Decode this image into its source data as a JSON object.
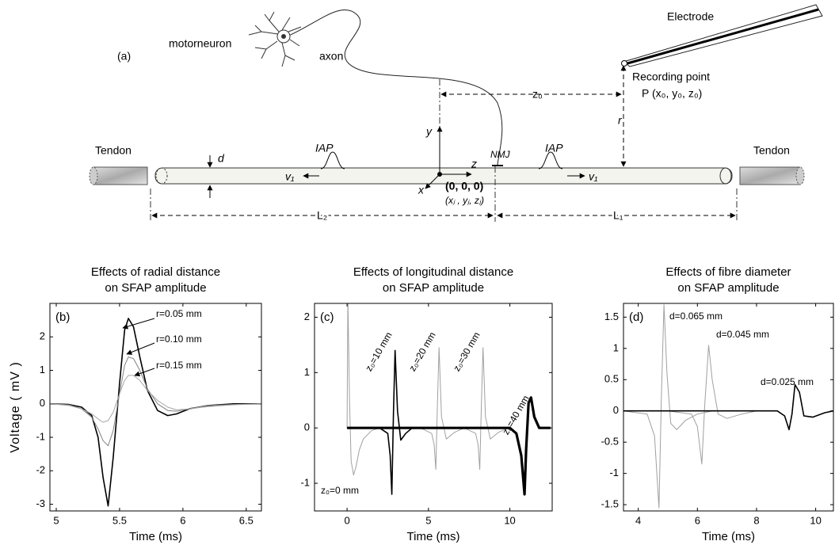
{
  "diagram": {
    "panel_label": "(a)",
    "motorneuron": "motorneuron",
    "axon": "axon",
    "electrode": "Electrode",
    "recording_point": "Recording point",
    "point_coords": "P (x₀, y₀, z₀)",
    "z0": "z₀",
    "r": "r",
    "tendon_left": "Tendon",
    "tendon_right": "Tendon",
    "d": "d",
    "iap_left": "IAP",
    "iap_right": "IAP",
    "v1_left": "v₁",
    "v1_right": "v₁",
    "axis_y": "y",
    "axis_z": "z",
    "axis_x": "x",
    "nmj": "NMJ",
    "origin": "(0, 0, 0)",
    "fibre_coords": "(xⱼ , yⱼ, zⱼ)",
    "l2": "L₂",
    "l1": "L₁"
  },
  "chart_data": [
    {
      "type": "line",
      "panel_label": "(b)",
      "title": [
        "Effects of radial distance",
        "on SFAP amplitude"
      ],
      "xlabel": "Time (ms)",
      "ylabel": "Voltage ( mV )",
      "xlim": [
        4.95,
        6.62
      ],
      "ylim": [
        -3.2,
        3.0
      ],
      "xticks": [
        5,
        5.5,
        6,
        6.5
      ],
      "yticks": [
        -3,
        -2,
        -1,
        0,
        1,
        2
      ],
      "series": [
        {
          "name": "r=0.05 mm",
          "color": "#000000",
          "x": [
            4.95,
            5.1,
            5.2,
            5.28,
            5.33,
            5.37,
            5.41,
            5.45,
            5.5,
            5.54,
            5.57,
            5.61,
            5.66,
            5.72,
            5.8,
            5.88,
            5.95,
            6.05,
            6.2,
            6.4,
            6.62
          ],
          "values": [
            0,
            -0.02,
            -0.1,
            -0.35,
            -1.0,
            -2.2,
            -3.05,
            -1.6,
            0.6,
            2.2,
            2.55,
            2.3,
            1.4,
            0.4,
            -0.2,
            -0.35,
            -0.3,
            -0.15,
            -0.05,
            0,
            0
          ]
        },
        {
          "name": "r=0.10 mm",
          "color": "#808080",
          "x": [
            4.95,
            5.1,
            5.2,
            5.28,
            5.33,
            5.37,
            5.41,
            5.45,
            5.5,
            5.54,
            5.57,
            5.61,
            5.66,
            5.72,
            5.8,
            5.88,
            5.95,
            6.05,
            6.2,
            6.4,
            6.62
          ],
          "values": [
            0,
            -0.03,
            -0.15,
            -0.4,
            -0.75,
            -1.1,
            -1.25,
            -0.8,
            0.3,
            1.15,
            1.4,
            1.35,
            1.0,
            0.45,
            0,
            -0.2,
            -0.22,
            -0.15,
            -0.05,
            -0.02,
            0
          ]
        },
        {
          "name": "r=0.15 mm",
          "color": "#a8a8a8",
          "x": [
            4.95,
            5.1,
            5.2,
            5.28,
            5.33,
            5.37,
            5.41,
            5.45,
            5.5,
            5.54,
            5.57,
            5.61,
            5.66,
            5.72,
            5.8,
            5.88,
            5.95,
            6.05,
            6.2,
            6.4,
            6.62
          ],
          "values": [
            0,
            -0.05,
            -0.15,
            -0.3,
            -0.45,
            -0.55,
            -0.5,
            -0.25,
            0.3,
            0.7,
            0.85,
            0.85,
            0.7,
            0.4,
            0.1,
            -0.1,
            -0.18,
            -0.15,
            -0.08,
            -0.03,
            0
          ]
        }
      ]
    },
    {
      "type": "line",
      "panel_label": "(c)",
      "title": [
        "Effects of longitudinal distance",
        "on SFAP amplitude"
      ],
      "xlabel": "Time (ms)",
      "xlim": [
        -2,
        12.6
      ],
      "ylim": [
        -1.5,
        2.25
      ],
      "xticks": [
        0,
        5,
        10
      ],
      "yticks": [
        -1,
        0,
        1,
        2
      ],
      "series": [
        {
          "name": "z₀=0 mm",
          "color": "#a0a0a0",
          "x": [
            0,
            0.05,
            0.15,
            0.25,
            0.4,
            0.55,
            0.75,
            1.0,
            1.5,
            2.0
          ],
          "values": [
            0,
            2.35,
            0.5,
            -0.6,
            -0.85,
            -0.7,
            -0.4,
            -0.2,
            -0.05,
            0
          ]
        },
        {
          "name": "z₀=10 mm",
          "color": "#000000",
          "x": [
            2.0,
            2.5,
            2.65,
            2.75,
            2.85,
            2.95,
            3.1,
            3.3,
            3.6,
            4.0
          ],
          "values": [
            0,
            -0.1,
            -0.5,
            -1.2,
            0.3,
            1.4,
            0.3,
            -0.22,
            -0.1,
            0
          ]
        },
        {
          "name": "z₀=20 mm",
          "color": "#a0a0a0",
          "x": [
            4.5,
            5.2,
            5.35,
            5.45,
            5.55,
            5.65,
            5.8,
            6.1,
            6.6,
            7.2
          ],
          "values": [
            0,
            -0.1,
            -0.3,
            -0.75,
            0.4,
            1.45,
            0.2,
            -0.2,
            -0.08,
            0
          ]
        },
        {
          "name": "z₀=30 mm",
          "color": "#a0a0a0",
          "x": [
            7.2,
            7.9,
            8.05,
            8.15,
            8.25,
            8.35,
            8.5,
            8.8,
            9.3,
            9.9
          ],
          "values": [
            0,
            -0.1,
            -0.3,
            -0.75,
            0.4,
            1.45,
            0.2,
            -0.2,
            -0.08,
            0
          ]
        },
        {
          "name": "z₀=40 mm",
          "color": "#000000",
          "x": [
            0,
            10,
            10.4,
            10.7,
            10.9,
            11.0,
            11.15,
            11.3,
            11.5,
            11.8,
            12.2,
            12.5
          ],
          "values": [
            0,
            0,
            -0.1,
            -0.5,
            -1.2,
            -0.4,
            0.45,
            0.55,
            0.2,
            0,
            0,
            0
          ]
        }
      ]
    },
    {
      "type": "line",
      "panel_label": "(d)",
      "title": [
        "Effects of fibre diameter",
        "on SFAP amplitude"
      ],
      "xlabel": "Time (ms)",
      "xlim": [
        3.5,
        10.6
      ],
      "ylim": [
        -1.6,
        1.72
      ],
      "xticks": [
        4,
        6,
        8,
        10
      ],
      "yticks": [
        -1.5,
        -1,
        -0.5,
        0,
        0.5,
        1,
        1.5
      ],
      "series": [
        {
          "name": "d=0.065 mm",
          "color": "#a0a0a0",
          "x": [
            3.5,
            4.3,
            4.55,
            4.7,
            4.78,
            4.87,
            4.97,
            5.1,
            5.3,
            5.6,
            6.0,
            6.5
          ],
          "values": [
            0,
            -0.05,
            -0.4,
            -1.55,
            0.2,
            1.7,
            0.6,
            -0.2,
            -0.3,
            -0.15,
            -0.05,
            0
          ]
        },
        {
          "name": "d=0.045 mm",
          "color": "#a0a0a0",
          "x": [
            5.0,
            5.8,
            6.0,
            6.15,
            6.25,
            6.38,
            6.5,
            6.7,
            7.0,
            7.5,
            8.0
          ],
          "values": [
            0,
            -0.05,
            -0.25,
            -0.85,
            0.1,
            1.05,
            0.5,
            -0.05,
            -0.12,
            -0.05,
            0
          ]
        },
        {
          "name": "d=0.025 mm",
          "color": "#000000",
          "x": [
            3.5,
            8.7,
            8.95,
            9.1,
            9.2,
            9.3,
            9.45,
            9.6,
            9.9,
            10.3,
            10.6
          ],
          "values": [
            0,
            0,
            -0.08,
            -0.3,
            -0.05,
            0.42,
            0.3,
            -0.08,
            -0.1,
            -0.03,
            0
          ]
        }
      ]
    }
  ]
}
